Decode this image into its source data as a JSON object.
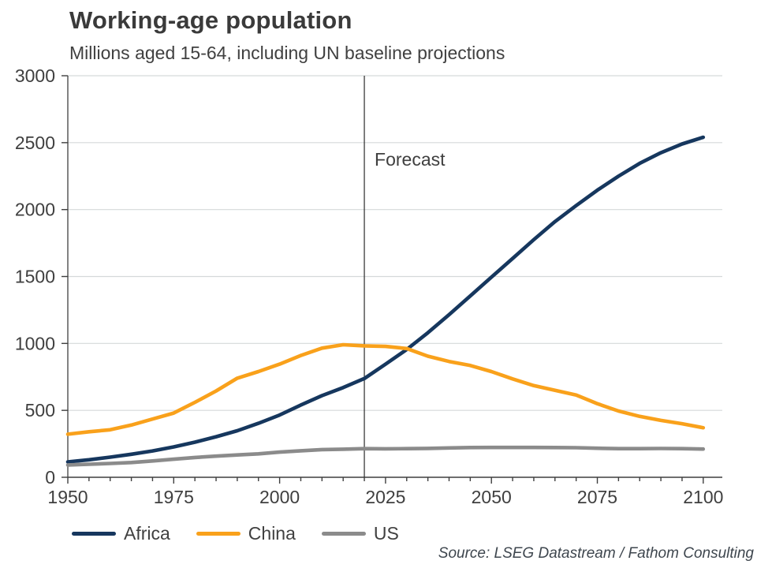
{
  "header": {
    "title": "Working-age population",
    "subtitle": "Millions aged 15-64, including UN baseline projections"
  },
  "footer": {
    "source": "Source: LSEG Datastream / Fathom Consulting"
  },
  "colors": {
    "grid": "#d5d9da",
    "axis": "#3f3f3f",
    "text": "#3f3f3f",
    "forecast_line": "#2b2b2b"
  },
  "chart_data": {
    "type": "line",
    "title": "Working-age population",
    "subtitle": "Millions aged 15-64, including UN baseline projections",
    "xlabel": "",
    "ylabel": "Millions aged 15-64",
    "x": [
      1950,
      1955,
      1960,
      1965,
      1970,
      1975,
      1980,
      1985,
      1990,
      1995,
      2000,
      2005,
      2010,
      2015,
      2020,
      2025,
      2030,
      2035,
      2040,
      2045,
      2050,
      2055,
      2060,
      2065,
      2070,
      2075,
      2080,
      2085,
      2090,
      2095,
      2100
    ],
    "series": [
      {
        "name": "Africa",
        "color": "#16375e",
        "values": [
          115,
          131,
          150,
          172,
          197,
          227,
          262,
          303,
          348,
          403,
          465,
          540,
          610,
          670,
          738,
          845,
          955,
          1080,
          1215,
          1355,
          1495,
          1635,
          1775,
          1910,
          2030,
          2145,
          2250,
          2345,
          2425,
          2490,
          2540
        ]
      },
      {
        "name": "China",
        "color": "#f9a11b",
        "values": [
          322,
          340,
          355,
          390,
          435,
          480,
          560,
          645,
          740,
          790,
          845,
          910,
          965,
          990,
          982,
          978,
          962,
          905,
          865,
          835,
          790,
          735,
          685,
          650,
          615,
          550,
          495,
          455,
          425,
          400,
          370
        ]
      },
      {
        "name": "US",
        "color": "#8b8b8b",
        "values": [
          92,
          97,
          103,
          110,
          122,
          135,
          148,
          158,
          167,
          175,
          188,
          198,
          207,
          210,
          214,
          213,
          214,
          216,
          219,
          222,
          223,
          223,
          223,
          222,
          221,
          217,
          214,
          214,
          215,
          214,
          211
        ]
      }
    ],
    "xlim": [
      1950,
      2104.5
    ],
    "ylim": [
      0,
      3000
    ],
    "xticks": [
      1950,
      1975,
      2000,
      2025,
      2050,
      2075,
      2100
    ],
    "x_minor_step": 5,
    "ytick_step": 500,
    "grid": "horizontal",
    "legend_position": "bottom",
    "forecast": {
      "x": 2020,
      "label": "Forecast"
    }
  }
}
